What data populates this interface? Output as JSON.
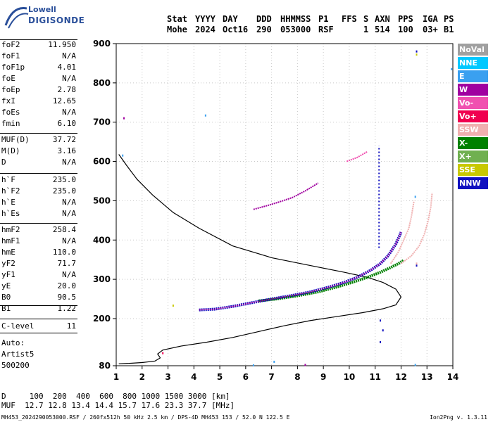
{
  "logo": {
    "line1": "Lowell",
    "line2": "DIGISONDE"
  },
  "header": {
    "columns": [
      "Stat",
      "YYYY",
      "DAY",
      "DDD",
      "HHMMSS",
      "P1",
      "FFS",
      "S",
      "AXN",
      "PPS",
      "IGA",
      "PS"
    ],
    "values": [
      "Mohe",
      "2024",
      "Oct16",
      "290",
      "053000",
      "RSF",
      "1",
      "514",
      "100",
      "03+",
      "B1"
    ]
  },
  "params": {
    "group1": [
      {
        "k": "foF2",
        "v": "11.950"
      },
      {
        "k": "foF1",
        "v": "N/A"
      },
      {
        "k": "foF1p",
        "v": "4.01"
      },
      {
        "k": "foE",
        "v": "N/A"
      },
      {
        "k": "foEp",
        "v": "2.78"
      },
      {
        "k": "fxI",
        "v": "12.65"
      },
      {
        "k": "foEs",
        "v": "N/A"
      },
      {
        "k": "fmin",
        "v": "6.10"
      }
    ],
    "group2": [
      {
        "k": "MUF(D)",
        "v": "37.72"
      },
      {
        "k": "M(D)",
        "v": "3.16"
      },
      {
        "k": "D",
        "v": "N/A"
      }
    ],
    "group3": [
      {
        "k": "h`F",
        "v": "235.0"
      },
      {
        "k": "h`F2",
        "v": "235.0"
      },
      {
        "k": "h`E",
        "v": "N/A"
      },
      {
        "k": "h`Es",
        "v": "N/A"
      }
    ],
    "group4": [
      {
        "k": "hmF2",
        "v": "258.4"
      },
      {
        "k": "hmF1",
        "v": "N/A"
      },
      {
        "k": "hmE",
        "v": "110.0"
      },
      {
        "k": "yF2",
        "v": "71.7"
      },
      {
        "k": "yF1",
        "v": "N/A"
      },
      {
        "k": "yE",
        "v": "20.0"
      },
      {
        "k": "B0",
        "v": "90.5"
      },
      {
        "k": "B1",
        "v": "1.22"
      }
    ],
    "group5": [
      {
        "k": "C-level",
        "v": "11"
      }
    ]
  },
  "auto": {
    "line1": "Auto:",
    "line2": "Artist5",
    "line3": "500200"
  },
  "legend": [
    {
      "label": "NoVal",
      "color": "#a0a0a0"
    },
    {
      "label": "NNE",
      "color": "#00c8ff"
    },
    {
      "label": "E",
      "color": "#3aa0f0"
    },
    {
      "label": "W",
      "color": "#a000a0"
    },
    {
      "label": "Vo-",
      "color": "#f050b0"
    },
    {
      "label": "Vo+",
      "color": "#f00050"
    },
    {
      "label": "SSW",
      "color": "#f0b0b0"
    },
    {
      "label": "X-",
      "color": "#008000"
    },
    {
      "label": "X+",
      "color": "#70b050"
    },
    {
      "label": "SSE",
      "color": "#c8c800"
    },
    {
      "label": "NNW",
      "color": "#1010c0"
    }
  ],
  "muf_table": {
    "row1": "D     100  200  400  600  800 1000 1500 3000 [km]",
    "row2": "MUF  12.7 12.8 13.4 14.4 15.7 17.6 23.3 37.7 [MHz]"
  },
  "footer": {
    "left": "MH453_2024290053000.RSF / 260fx512h 50 kHz 2.5 km / DPS-4D MH453 153 / 52.0 N 122.5 E",
    "right": "Ion2Png v. 1.3.11"
  },
  "chart_data": {
    "type": "scatter",
    "xlim": [
      1,
      14
    ],
    "ylim": [
      80,
      900
    ],
    "x_ticks": [
      1,
      2,
      3,
      4,
      5,
      6,
      7,
      8,
      9,
      10,
      11,
      12,
      13,
      14
    ],
    "y_ticks": [
      80,
      200,
      300,
      400,
      500,
      600,
      700,
      800,
      900
    ],
    "grid": true,
    "profile_curve": {
      "x": [
        1.1,
        1.5,
        2.0,
        2.5,
        2.7,
        2.6,
        2.8,
        3.5,
        4.5,
        5.5,
        6.5,
        7.5,
        8.5,
        9.5,
        10.5,
        11.3,
        11.8,
        12.0,
        11.8,
        11.3,
        10.7,
        9.8,
        8.5,
        7.0,
        5.5,
        4.2,
        3.2,
        2.4,
        1.8,
        1.4,
        1.1
      ],
      "y": [
        85,
        86,
        88,
        92,
        100,
        110,
        120,
        130,
        140,
        152,
        167,
        182,
        195,
        205,
        215,
        225,
        235,
        255,
        275,
        292,
        305,
        318,
        335,
        355,
        385,
        430,
        470,
        515,
        555,
        590,
        618
      ]
    },
    "o_trace": {
      "x": [
        4.2,
        4.8,
        5.5,
        6.2,
        7.0,
        7.8,
        8.5,
        9.2,
        9.8,
        10.3,
        10.8,
        11.2,
        11.5,
        11.8,
        12.0
      ],
      "y": [
        222,
        224,
        231,
        240,
        250,
        259,
        268,
        280,
        292,
        305,
        322,
        340,
        360,
        390,
        420
      ]
    },
    "x_trace": {
      "x": [
        6.5,
        7.2,
        8.0,
        8.8,
        9.5,
        10.1,
        10.7,
        11.2,
        11.6,
        11.9,
        12.1
      ],
      "y": [
        245,
        250,
        258,
        268,
        280,
        292,
        305,
        318,
        330,
        340,
        348
      ]
    },
    "ssw_trace": {
      "x": [
        11.6,
        11.9,
        12.1,
        12.3,
        12.4,
        12.5
      ],
      "y": [
        340,
        370,
        400,
        430,
        460,
        500
      ]
    },
    "ssw_trace2": {
      "x": [
        12.0,
        12.4,
        12.7,
        12.9,
        13.05,
        13.15,
        13.2
      ],
      "y": [
        340,
        360,
        385,
        415,
        450,
        485,
        520
      ]
    },
    "upper_trace": {
      "x": [
        6.3,
        6.8,
        7.3,
        7.8,
        8.3,
        8.8
      ],
      "y": [
        478,
        487,
        497,
        508,
        525,
        545
      ]
    },
    "upper_trace2": {
      "x": [
        9.9,
        10.3,
        10.7
      ],
      "y": [
        600,
        610,
        625
      ]
    },
    "vertical_nnw": {
      "x": 11.15,
      "ymin": 380,
      "ymax": 640
    },
    "scatter_points": [
      {
        "x": 1.3,
        "y": 710,
        "c": "#a000a0"
      },
      {
        "x": 1.25,
        "y": 615,
        "c": "#3aa0f0"
      },
      {
        "x": 4.45,
        "y": 717,
        "c": "#3aa0f0"
      },
      {
        "x": 12.55,
        "y": 510,
        "c": "#3aa0f0"
      },
      {
        "x": 13.95,
        "y": 835,
        "c": "#3aa0f0"
      },
      {
        "x": 12.6,
        "y": 880,
        "c": "#1010c0"
      },
      {
        "x": 12.6,
        "y": 872,
        "c": "#c8c800"
      },
      {
        "x": 3.2,
        "y": 233,
        "c": "#c8c800"
      },
      {
        "x": 11.3,
        "y": 170,
        "c": "#1010c0"
      },
      {
        "x": 11.2,
        "y": 140,
        "c": "#1010c0"
      },
      {
        "x": 11.2,
        "y": 195,
        "c": "#1010c0"
      },
      {
        "x": 12.6,
        "y": 335,
        "c": "#1010c0"
      },
      {
        "x": 12.6,
        "y": 340,
        "c": "#f0b0b0"
      },
      {
        "x": 2.8,
        "y": 112,
        "c": "#f00050"
      },
      {
        "x": 8.3,
        "y": 82,
        "c": "#a000a0"
      },
      {
        "x": 7.1,
        "y": 90,
        "c": "#3aa0f0"
      },
      {
        "x": 6.3,
        "y": 81,
        "c": "#3aa0f0"
      },
      {
        "x": 12.55,
        "y": 82,
        "c": "#3aa0f0"
      }
    ],
    "lines_color": "#000000"
  }
}
